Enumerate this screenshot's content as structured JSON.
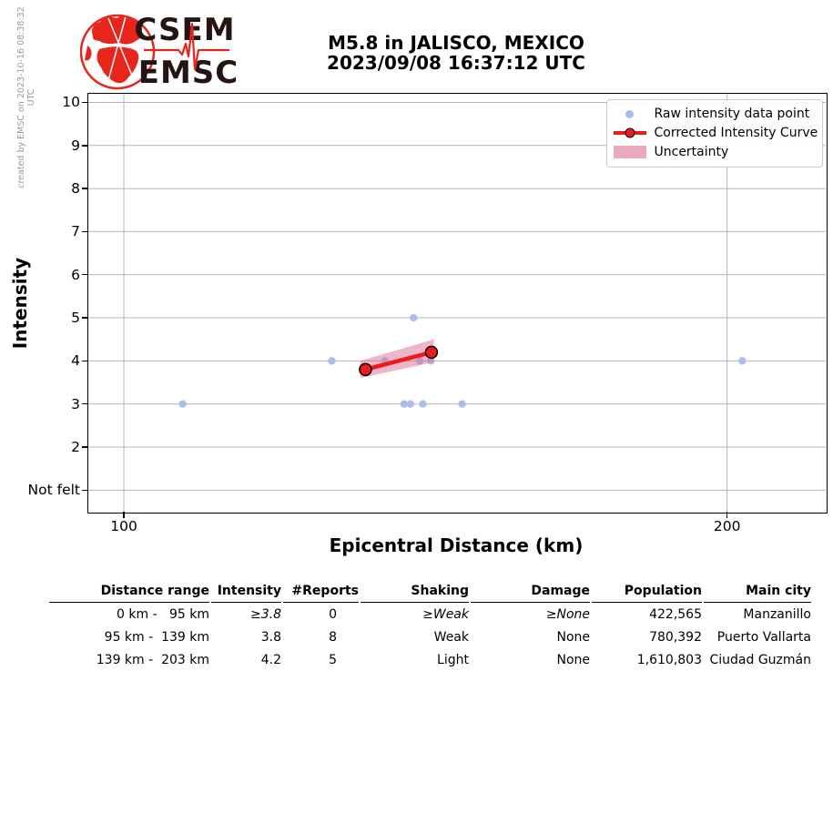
{
  "header": {
    "created_by": "created by EMSC on 2023-10-16 08:38:32 UTC",
    "logo_top": "CSEM",
    "logo_bottom": "EMSC",
    "title_line1": "M5.8 in JALISCO, MEXICO",
    "title_line2": "2023/09/08 16:37:12 UTC"
  },
  "colors": {
    "raw_point": "#a9bce8",
    "curve_red": "#ec1c1c",
    "band_pink": "#db7093",
    "grid_gray": "#b4b4b4",
    "logo_red": "#e8251d",
    "logo_text": "#241413"
  },
  "chart_data": {
    "type": "scatter",
    "title": "M5.8 in JALISCO, MEXICO 2023/09/08 16:37:12 UTC",
    "xlabel": "Epicentral Distance (km)",
    "ylabel": "Intensity",
    "x_scale": "log",
    "xlim": [
      96,
      224
    ],
    "ylim": [
      0.5,
      10.2
    ],
    "grid": true,
    "legend_position": "upper right",
    "x_ticks": [
      {
        "value": 100,
        "label": "100"
      },
      {
        "value": 200,
        "label": "200"
      }
    ],
    "y_ticks": [
      {
        "value": 1,
        "label": "Not felt"
      },
      {
        "value": 2,
        "label": "2"
      },
      {
        "value": 3,
        "label": "3"
      },
      {
        "value": 4,
        "label": "4"
      },
      {
        "value": 5,
        "label": "5"
      },
      {
        "value": 6,
        "label": "6"
      },
      {
        "value": 7,
        "label": "7"
      },
      {
        "value": 8,
        "label": "8"
      },
      {
        "value": 9,
        "label": "9"
      },
      {
        "value": 10,
        "label": "10"
      }
    ],
    "series": [
      {
        "name": "Raw intensity data point",
        "type": "scatter",
        "color": "#a9bce8",
        "points": [
          [
            107,
            3
          ],
          [
            127,
            4
          ],
          [
            135,
            4
          ],
          [
            138,
            3
          ],
          [
            139,
            3
          ],
          [
            139.5,
            5
          ],
          [
            140.5,
            4
          ],
          [
            141,
            3
          ],
          [
            142.3,
            4
          ],
          [
            147.5,
            3
          ],
          [
            203.5,
            4
          ]
        ]
      },
      {
        "name": "Corrected Intensity Curve",
        "type": "line",
        "color": "#ec1c1c",
        "points": [
          [
            132,
            3.8
          ],
          [
            142.4,
            4.2
          ]
        ]
      },
      {
        "name": "Uncertainty",
        "type": "band",
        "color": "#db7093",
        "alpha": 0.5,
        "x": [
          131.2,
          142.8
        ],
        "upper": [
          4.0,
          4.5
        ],
        "lower": [
          3.6,
          3.97
        ]
      }
    ],
    "legend": [
      {
        "label": "Raw intensity data point",
        "icon": "raw-point-marker"
      },
      {
        "label": "Corrected Intensity Curve",
        "icon": "curve-marker"
      },
      {
        "label": "Uncertainty",
        "icon": "uncertainty-patch"
      }
    ]
  },
  "table": {
    "headers": [
      "Distance range",
      "Intensity",
      "#Reports",
      "Shaking",
      "Damage",
      "Population",
      "Main city"
    ],
    "rows": [
      [
        "0 km -   95 km",
        "≥3.8",
        "0",
        "≥Weak",
        "≥None",
        "422,565",
        "Manzanillo"
      ],
      [
        "95 km -  139 km",
        "3.8",
        "8",
        "Weak",
        "None",
        "780,392",
        "Puerto Vallarta"
      ],
      [
        "139 km -  203 km",
        "4.2",
        "5",
        "Light",
        "None",
        "1,610,803",
        "Ciudad Guzmán"
      ]
    ]
  }
}
